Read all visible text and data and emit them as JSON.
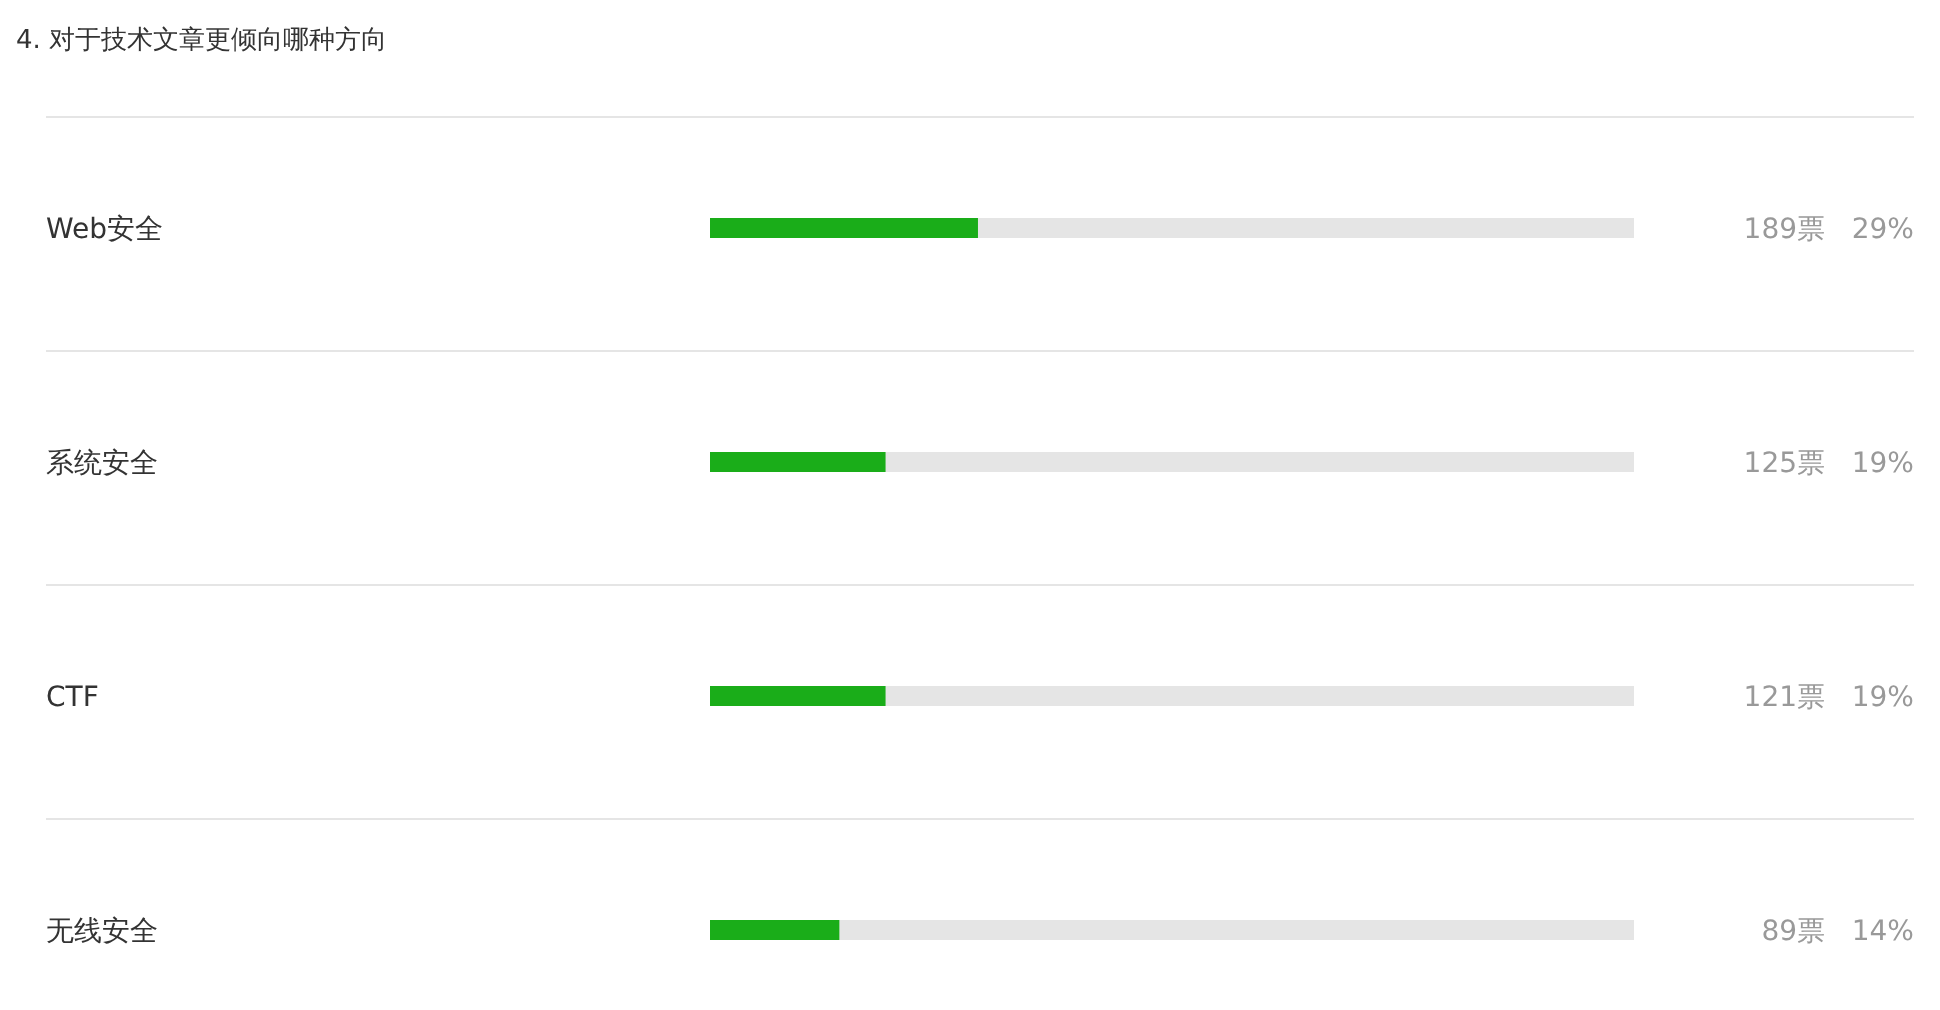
{
  "chart_data": {
    "type": "bar",
    "orientation": "horizontal",
    "title": "4. 对于技术文章更倾向哪种方向",
    "categories": [
      "Web安全",
      "系统安全",
      "CTF",
      "无线安全"
    ],
    "values": [
      29,
      19,
      19,
      14
    ],
    "value_labels": [
      "189票   29%",
      "125票   19%",
      "121票   19%",
      "89票   14%"
    ],
    "color": "#1aad19",
    "xlim": [
      0,
      100
    ],
    "tick_labels": "y"
  }
}
